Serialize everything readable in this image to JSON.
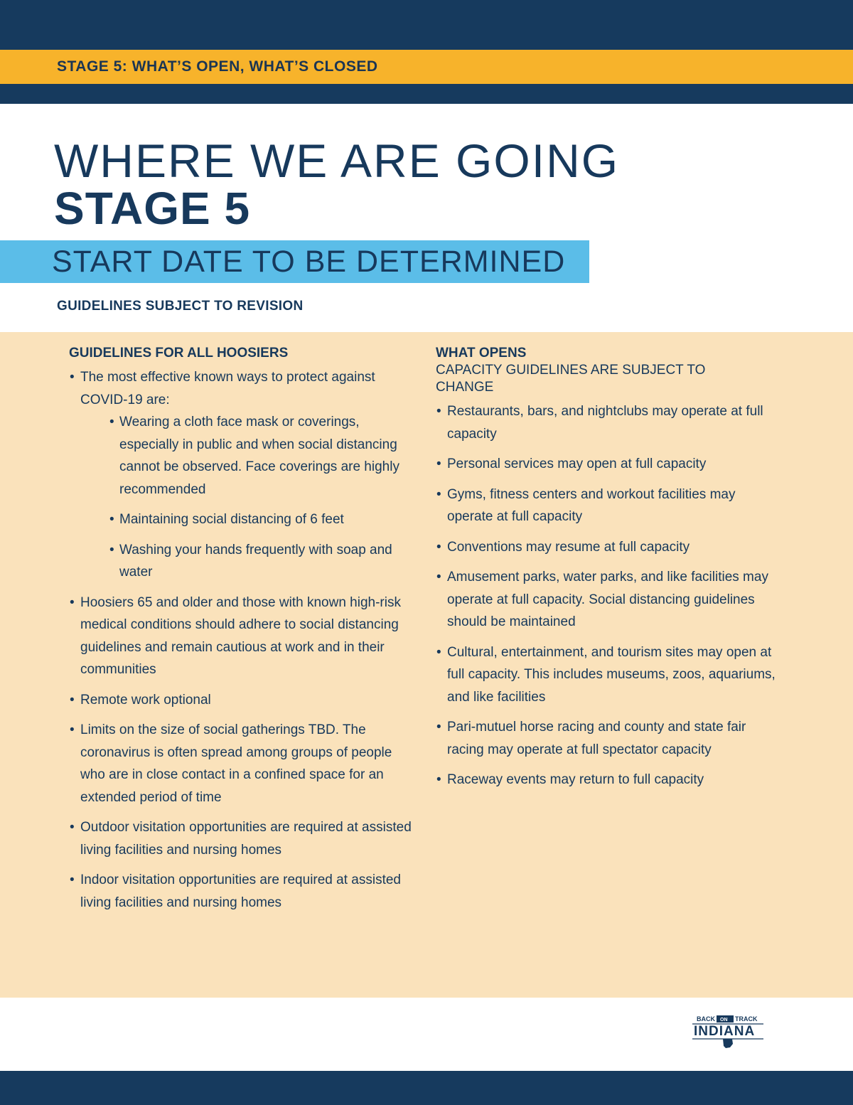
{
  "header": {
    "stage_label": "STAGE 5: WHAT’S OPEN, WHAT’S CLOSED"
  },
  "title": {
    "line1": "WHERE WE ARE GOING",
    "line2": "STAGE 5",
    "start_date": "START DATE TO BE DETERMINED",
    "note": "GUIDELINES SUBJECT TO REVISION"
  },
  "left": {
    "heading": "GUIDELINES FOR ALL HOOSIERS",
    "intro": "The most effective known ways to protect against COVID-19 are:",
    "sub_items": [
      "Wearing a cloth face mask or coverings, especially in public and when social distancing cannot be observed. Face coverings are highly recommended",
      "Maintaining social distancing of 6 feet",
      "Washing your hands frequently with soap and water"
    ],
    "items": [
      "Hoosiers 65 and older and those with known high-risk medical conditions should adhere to social distancing guidelines and remain cautious at work and in their communities",
      "Remote work optional",
      "Limits on the size of social gatherings TBD. The coronavirus is often spread among groups of people who are in close contact in a confined space for an extended period of time",
      "Outdoor visitation opportunities are required at assisted living facilities and nursing homes",
      "Indoor visitation opportunities are required at assisted living facilities and nursing homes"
    ]
  },
  "right": {
    "heading": "WHAT OPENS",
    "subheading": "CAPACITY GUIDELINES ARE SUBJECT TO CHANGE",
    "items": [
      "Restaurants, bars, and nightclubs may operate at full capacity",
      "Personal services may open at full capacity",
      "Gyms, fitness centers and workout facilities may operate at full capacity",
      "Conventions may resume at full capacity",
      "Amusement parks, water parks, and like facilities may operate at full capacity. Social distancing guidelines should be maintained",
      "Cultural, entertainment, and tourism sites may open at full capacity. This includes museums, zoos, aquariums, and like facilities",
      "Pari-mutuel horse racing and county and state fair racing may operate at full spectator capacity",
      "Raceway events may return to full capacity"
    ]
  },
  "logo": {
    "back": "BACK",
    "on": "ON",
    "track": "TRACK",
    "name": "INDIANA"
  },
  "colors": {
    "navy": "#163a5e",
    "gold": "#f7b32b",
    "sky": "#5bbde8",
    "cream": "#fae2bb"
  }
}
